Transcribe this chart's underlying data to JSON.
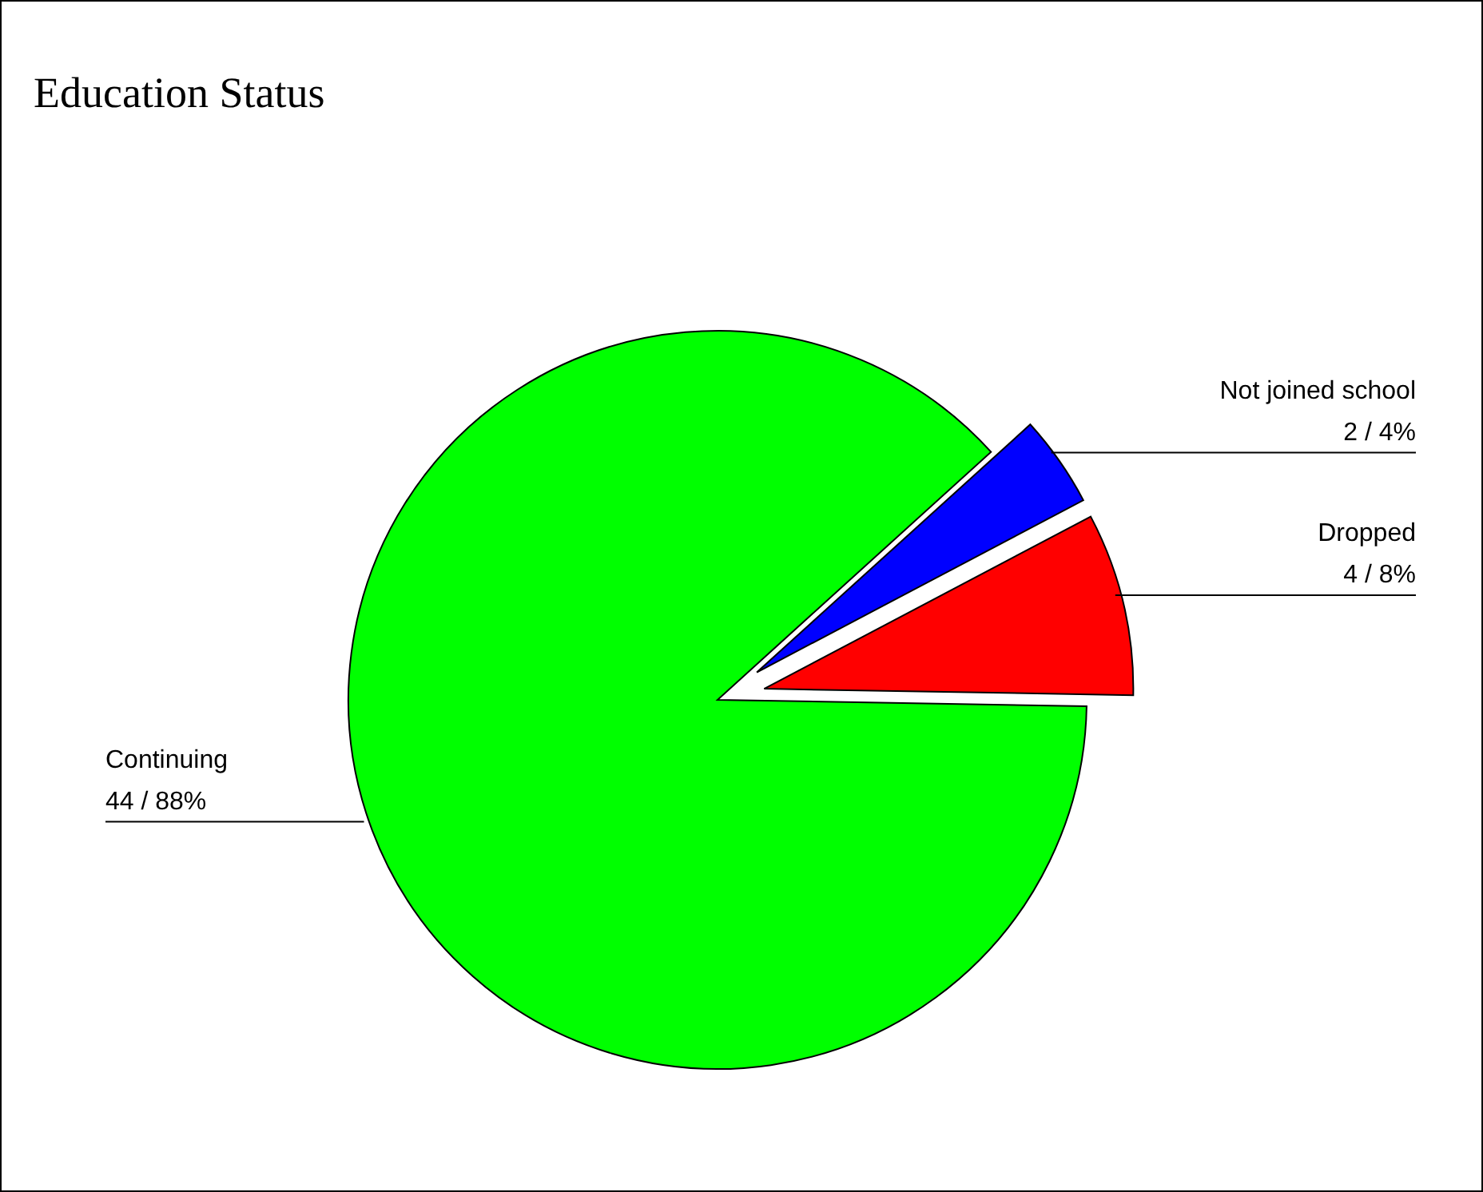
{
  "chart_data": {
    "type": "pie",
    "title": "Education Status",
    "categories": [
      "Dropped",
      "Not joined school",
      "Continuing"
    ],
    "values": [
      4,
      2,
      44
    ],
    "colors": [
      "#ff0000",
      "#0000ff",
      "#00ff00"
    ],
    "value_labels": [
      "4 / 8%",
      "2 / 4%",
      "44 / 88%"
    ]
  }
}
